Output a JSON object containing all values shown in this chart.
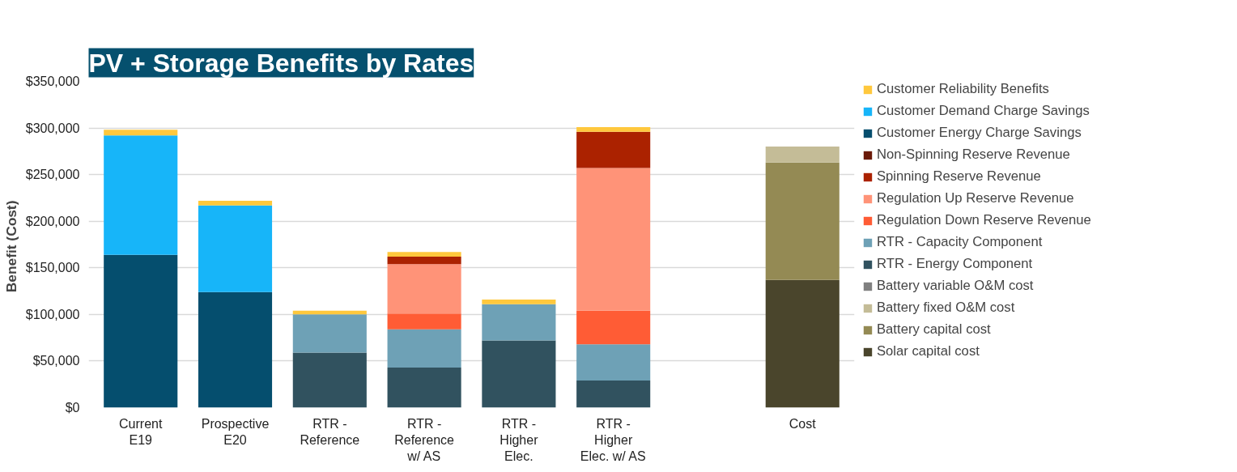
{
  "chart_data": {
    "type": "bar",
    "title": "PV + Storage Benefits by Rates",
    "ylabel": "Benefit  (Cost)",
    "stacked": true,
    "categories": [
      "Current\nE19",
      "Prospective\nE20",
      "RTR -\nReference",
      "RTR -\nReference\nw/ AS",
      "RTR -\nHigher\nElec.",
      "RTR -\nHigher\nElec. w/ AS",
      null,
      "Cost"
    ],
    "ylim": [
      0,
      350000
    ],
    "yticks": [
      {
        "value": 0,
        "label": "$0"
      },
      {
        "value": 50000,
        "label": "$50,000"
      },
      {
        "value": 100000,
        "label": "$100,000"
      },
      {
        "value": 150000,
        "label": "$150,000"
      },
      {
        "value": 200000,
        "label": "$200,000"
      },
      {
        "value": 250000,
        "label": "$250,000"
      },
      {
        "value": 300000,
        "label": "$300,000"
      },
      {
        "value": 350000,
        "label": "$350,000"
      }
    ],
    "grid": "y",
    "legend": "right",
    "series": [
      {
        "name": "Solar capital cost",
        "color": "#4a452c",
        "values": [
          null,
          null,
          null,
          null,
          null,
          null,
          null,
          137000
        ]
      },
      {
        "name": "Battery capital cost",
        "color": "#948a54",
        "values": [
          null,
          null,
          null,
          null,
          null,
          null,
          null,
          126000
        ]
      },
      {
        "name": "Battery fixed O&M cost",
        "color": "#c4bc97",
        "values": [
          null,
          null,
          null,
          null,
          null,
          null,
          null,
          17000
        ]
      },
      {
        "name": "Battery variable O&M cost",
        "color": "#808080",
        "values": [
          null,
          null,
          null,
          null,
          null,
          null,
          null,
          null
        ]
      },
      {
        "name": "RTR - Energy Component",
        "color": "#31525f",
        "values": [
          null,
          null,
          59000,
          43000,
          72000,
          29000,
          null,
          null
        ]
      },
      {
        "name": "RTR - Capacity Component",
        "color": "#6ea1b6",
        "values": [
          null,
          null,
          41000,
          41000,
          39000,
          39000,
          null,
          null
        ]
      },
      {
        "name": "Regulation Down Reserve Revenue",
        "color": "#ff5c35",
        "values": [
          null,
          null,
          null,
          17000,
          null,
          36000,
          null,
          null
        ]
      },
      {
        "name": "Regulation Up Reserve Revenue",
        "color": "#ff9378",
        "values": [
          null,
          null,
          null,
          53000,
          null,
          153000,
          null,
          null
        ]
      },
      {
        "name": "Spinning Reserve Revenue",
        "color": "#ab2200",
        "values": [
          null,
          null,
          null,
          8000,
          null,
          39000,
          null,
          null
        ]
      },
      {
        "name": "Non-Spinning Reserve Revenue",
        "color": "#6b1a08",
        "values": [
          null,
          null,
          null,
          null,
          null,
          null,
          null,
          null
        ]
      },
      {
        "name": "Customer Energy Charge Savings",
        "color": "#054e6e",
        "values": [
          164000,
          124000,
          null,
          null,
          null,
          null,
          null,
          null
        ]
      },
      {
        "name": "Customer Demand Charge Savings",
        "color": "#17b5f9",
        "values": [
          128000,
          93000,
          null,
          null,
          null,
          null,
          null,
          null
        ]
      },
      {
        "name": "Customer Reliability Benefits",
        "color": "#ffc83d",
        "values": [
          6000,
          5000,
          4000,
          5000,
          5000,
          5000,
          null,
          null
        ]
      }
    ]
  }
}
